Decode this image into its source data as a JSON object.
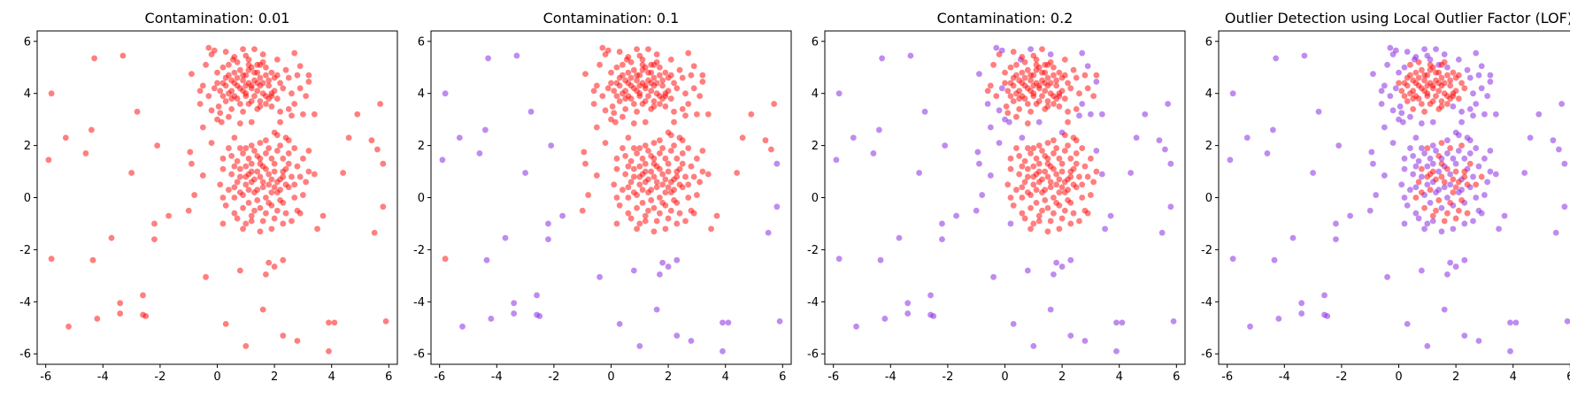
{
  "colors": {
    "inlier": "#ff0000",
    "outlier": "#8b2be2"
  },
  "chart_data": [
    {
      "type": "scatter",
      "title": "Contamination: 0.01",
      "xlim": [
        -6.3,
        6.3
      ],
      "ylim": [
        -6.4,
        6.4
      ],
      "xticks": [
        -6,
        -4,
        -2,
        0,
        2,
        4,
        6
      ],
      "yticks": [
        -6,
        -4,
        -2,
        0,
        2,
        4,
        6
      ],
      "grid": false,
      "outlier_count": 0
    },
    {
      "type": "scatter",
      "title": "Contamination: 0.1",
      "xlim": [
        -6.3,
        6.3
      ],
      "ylim": [
        -6.4,
        6.4
      ],
      "xticks": [
        -6,
        -4,
        -2,
        0,
        2,
        4,
        6
      ],
      "yticks": [
        -6,
        -4,
        -2,
        0,
        2,
        4,
        6
      ],
      "grid": false,
      "outlier_count": 40
    },
    {
      "type": "scatter",
      "title": "Contamination: 0.2",
      "xlim": [
        -6.3,
        6.3
      ],
      "ylim": [
        -6.4,
        6.4
      ],
      "xticks": [
        -6,
        -4,
        -2,
        0,
        2,
        4,
        6
      ],
      "yticks": [
        -6,
        -4,
        -2,
        0,
        2,
        4,
        6
      ],
      "grid": false,
      "outlier_count": 80
    },
    {
      "type": "scatter",
      "title": "Outlier Detection using Local Outlier Factor (LOF)",
      "xlim": [
        -6.3,
        6.3
      ],
      "ylim": [
        -6.4,
        6.4
      ],
      "xticks": [
        -6,
        -4,
        -2,
        0,
        2,
        4,
        6
      ],
      "yticks": [
        -6,
        -4,
        -2,
        0,
        2,
        4,
        6
      ],
      "grid": false,
      "outlier_count": 200
    }
  ],
  "points": [
    [
      -5.8,
      4.0
    ],
    [
      -4.3,
      5.35
    ],
    [
      -3.3,
      5.45
    ],
    [
      -5.9,
      1.45
    ],
    [
      -5.3,
      2.3
    ],
    [
      -4.4,
      2.6
    ],
    [
      -4.6,
      1.7
    ],
    [
      -2.8,
      3.3
    ],
    [
      -3.0,
      0.95
    ],
    [
      -2.1,
      2.0
    ],
    [
      -5.8,
      -2.35
    ],
    [
      -4.35,
      -2.4
    ],
    [
      -3.7,
      -1.55
    ],
    [
      -2.2,
      -1.0
    ],
    [
      -2.2,
      -1.6
    ],
    [
      -1.7,
      -0.7
    ],
    [
      -5.2,
      -4.95
    ],
    [
      -4.2,
      -4.65
    ],
    [
      -3.4,
      -4.05
    ],
    [
      -3.4,
      -4.45
    ],
    [
      -2.6,
      -3.75
    ],
    [
      -2.6,
      -4.5
    ],
    [
      -2.5,
      -4.55
    ],
    [
      -0.4,
      -3.05
    ],
    [
      0.3,
      -4.85
    ],
    [
      0.8,
      -2.8
    ],
    [
      1.0,
      -5.7
    ],
    [
      1.6,
      -4.3
    ],
    [
      1.8,
      -2.5
    ],
    [
      1.7,
      -2.95
    ],
    [
      2.0,
      -2.65
    ],
    [
      2.3,
      -2.4
    ],
    [
      2.3,
      -5.3
    ],
    [
      2.8,
      -5.5
    ],
    [
      3.9,
      -4.8
    ],
    [
      4.1,
      -4.8
    ],
    [
      3.9,
      -5.9
    ],
    [
      5.9,
      -4.75
    ],
    [
      5.8,
      -0.35
    ],
    [
      5.5,
      -1.35
    ],
    [
      5.8,
      1.3
    ],
    [
      5.6,
      1.85
    ],
    [
      5.4,
      2.2
    ],
    [
      4.6,
      2.3
    ],
    [
      4.4,
      0.95
    ],
    [
      5.7,
      3.6
    ],
    [
      3.2,
      4.45
    ],
    [
      2.7,
      5.55
    ],
    [
      -0.95,
      1.75
    ],
    [
      -0.9,
      1.3
    ],
    [
      -0.5,
      0.85
    ],
    [
      -0.3,
      5.75
    ],
    [
      -0.1,
      5.65
    ],
    [
      -0.9,
      4.75
    ],
    [
      -0.6,
      3.6
    ],
    [
      3.5,
      -1.2
    ],
    [
      3.7,
      -0.7
    ],
    [
      0.2,
      -1.0
    ],
    [
      3.4,
      0.9
    ],
    [
      -0.2,
      2.1
    ],
    [
      3.4,
      3.2
    ],
    [
      3.2,
      1.8
    ],
    [
      -0.5,
      2.7
    ],
    [
      0.55,
      5.3
    ],
    [
      1.6,
      5.5
    ],
    [
      2.0,
      2.5
    ],
    [
      -1.0,
      -0.5
    ],
    [
      4.9,
      3.2
    ],
    [
      -0.8,
      0.1
    ],
    [
      0.15,
      2.9
    ],
    [
      2.9,
      5.05
    ],
    [
      2.6,
      3.15
    ],
    [
      2.7,
      3.6
    ],
    [
      3.0,
      3.2
    ],
    [
      -0.2,
      3.35
    ],
    [
      0.0,
      3.0
    ],
    [
      1.2,
      2.9
    ],
    [
      0.6,
      2.3
    ],
    [
      -0.1,
      4.2
    ],
    [
      0.9,
      5.7
    ],
    [
      1.4,
      5.1
    ],
    [
      2.1,
      5.3
    ],
    [
      -0.2,
      5.5
    ],
    [
      3.1,
      3.9
    ],
    [
      2.6,
      4.0
    ],
    [
      2.5,
      4.6
    ],
    [
      2.4,
      4.9
    ],
    [
      1.1,
      5.3
    ],
    [
      0.3,
      5.6
    ],
    [
      -0.5,
      4.3
    ],
    [
      0.0,
      4.8
    ],
    [
      -0.3,
      3.9
    ],
    [
      0.05,
      3.5
    ],
    [
      0.4,
      3.1
    ],
    [
      0.8,
      2.85
    ],
    [
      2.2,
      3.3
    ],
    [
      2.2,
      2.9
    ],
    [
      1.9,
      3.5
    ],
    [
      0.2,
      5.0
    ],
    [
      1.7,
      5.0
    ],
    [
      2.9,
      4.2
    ],
    [
      -0.4,
      5.1
    ],
    [
      0.6,
      5.4
    ],
    [
      1.3,
      5.7
    ],
    [
      2.8,
      4.7
    ],
    [
      2.5,
      3.4
    ],
    [
      0.1,
      3.25
    ],
    [
      3.2,
      4.7
    ],
    [
      -0.6,
      4.1
    ],
    [
      1.0,
      5.45
    ],
    [
      0.2,
      4.4
    ],
    [
      0.5,
      4.1
    ],
    [
      0.9,
      4.5
    ],
    [
      1.2,
      4.2
    ],
    [
      1.6,
      4.0
    ],
    [
      0.7,
      3.8
    ],
    [
      1.1,
      3.6
    ],
    [
      1.5,
      4.6
    ],
    [
      1.8,
      4.3
    ],
    [
      0.4,
      4.7
    ],
    [
      0.8,
      4.9
    ],
    [
      1.3,
      4.8
    ],
    [
      2.0,
      4.1
    ],
    [
      0.3,
      3.7
    ],
    [
      1.4,
      3.4
    ],
    [
      1.9,
      3.9
    ],
    [
      0.6,
      4.4
    ],
    [
      1.0,
      4.0
    ],
    [
      1.7,
      4.7
    ],
    [
      0.5,
      3.4
    ],
    [
      2.2,
      4.4
    ],
    [
      0.1,
      4.1
    ],
    [
      1.2,
      5.0
    ],
    [
      1.5,
      3.7
    ],
    [
      0.9,
      3.3
    ],
    [
      2.1,
      3.8
    ],
    [
      0.4,
      5.1
    ],
    [
      1.6,
      5.2
    ],
    [
      0.7,
      4.6
    ],
    [
      1.1,
      4.4
    ],
    [
      1.4,
      4.1
    ],
    [
      0.8,
      4.2
    ],
    [
      1.3,
      3.9
    ],
    [
      0.6,
      3.9
    ],
    [
      1.8,
      4.5
    ],
    [
      1.0,
      4.7
    ],
    [
      0.3,
      4.3
    ],
    [
      2.0,
      4.6
    ],
    [
      1.5,
      4.3
    ],
    [
      0.9,
      4.1
    ],
    [
      0.5,
      3.8
    ],
    [
      1.2,
      3.7
    ],
    [
      1.7,
      3.6
    ],
    [
      0.2,
      3.9
    ],
    [
      1.9,
      4.8
    ],
    [
      1.1,
      5.1
    ],
    [
      0.7,
      5.2
    ],
    [
      1.5,
      5.1
    ],
    [
      2.3,
      4.2
    ],
    [
      0.0,
      4.4
    ],
    [
      1.3,
      4.5
    ],
    [
      0.8,
      3.6
    ],
    [
      1.0,
      3.9
    ],
    [
      1.6,
      4.4
    ],
    [
      0.4,
      4.0
    ],
    [
      2.1,
      4.7
    ],
    [
      1.4,
      4.8
    ],
    [
      0.6,
      4.8
    ],
    [
      1.9,
      4.0
    ],
    [
      1.2,
      4.3
    ],
    [
      0.3,
      4.6
    ],
    [
      1.7,
      3.9
    ],
    [
      0.9,
      4.7
    ],
    [
      1.5,
      3.5
    ],
    [
      1.1,
      4.9
    ],
    [
      0.7,
      4.3
    ],
    [
      1.8,
      3.8
    ],
    [
      0.5,
      4.5
    ],
    [
      1.4,
      4.4
    ],
    [
      1.0,
      4.3
    ],
    [
      0.2,
      1.1
    ],
    [
      0.5,
      1.6
    ],
    [
      0.4,
      0.3
    ],
    [
      0.3,
      -0.3
    ],
    [
      0.6,
      -0.6
    ],
    [
      0.9,
      -1.2
    ],
    [
      1.2,
      -0.9
    ],
    [
      1.5,
      -1.3
    ],
    [
      1.9,
      -1.2
    ],
    [
      2.3,
      -1.0
    ],
    [
      2.6,
      -0.9
    ],
    [
      2.8,
      -0.5
    ],
    [
      3.0,
      0.1
    ],
    [
      3.1,
      0.6
    ],
    [
      3.0,
      1.5
    ],
    [
      2.7,
      1.9
    ],
    [
      2.5,
      2.2
    ],
    [
      2.1,
      2.4
    ],
    [
      1.7,
      2.2
    ],
    [
      1.2,
      2.0
    ],
    [
      0.8,
      1.9
    ],
    [
      0.4,
      1.9
    ],
    [
      0.1,
      0.5
    ],
    [
      0.2,
      0.0
    ],
    [
      3.2,
      1.0
    ],
    [
      0.7,
      -0.8
    ],
    [
      2.9,
      -0.6
    ],
    [
      1.0,
      -1.0
    ],
    [
      2.4,
      2.3
    ],
    [
      0.2,
      1.5
    ],
    [
      0.6,
      0.4
    ],
    [
      0.8,
      0.8
    ],
    [
      1.0,
      1.2
    ],
    [
      1.2,
      0.6
    ],
    [
      1.4,
      1.0
    ],
    [
      1.6,
      0.4
    ],
    [
      1.8,
      0.9
    ],
    [
      2.0,
      1.3
    ],
    [
      2.2,
      0.7
    ],
    [
      2.4,
      1.1
    ],
    [
      0.9,
      0.1
    ],
    [
      1.1,
      -0.2
    ],
    [
      1.3,
      0.2
    ],
    [
      1.5,
      -0.4
    ],
    [
      1.7,
      0.0
    ],
    [
      1.9,
      -0.3
    ],
    [
      2.1,
      0.2
    ],
    [
      2.3,
      -0.2
    ],
    [
      2.5,
      0.4
    ],
    [
      2.7,
      0.0
    ],
    [
      0.7,
      1.4
    ],
    [
      0.9,
      1.7
    ],
    [
      1.1,
      1.5
    ],
    [
      1.3,
      1.8
    ],
    [
      1.5,
      1.5
    ],
    [
      1.7,
      1.7
    ],
    [
      1.9,
      1.5
    ],
    [
      2.1,
      1.8
    ],
    [
      2.3,
      1.5
    ],
    [
      2.5,
      1.7
    ],
    [
      0.5,
      0.9
    ],
    [
      0.6,
      1.2
    ],
    [
      2.6,
      0.8
    ],
    [
      2.8,
      1.2
    ],
    [
      1.0,
      0.5
    ],
    [
      1.4,
      0.3
    ],
    [
      1.8,
      0.5
    ],
    [
      2.2,
      0.3
    ],
    [
      1.2,
      1.3
    ],
    [
      1.6,
      1.2
    ],
    [
      2.0,
      1.0
    ],
    [
      2.4,
      0.5
    ],
    [
      0.8,
      0.2
    ],
    [
      1.1,
      0.9
    ],
    [
      1.5,
      0.8
    ],
    [
      1.9,
      0.7
    ],
    [
      2.3,
      1.0
    ],
    [
      1.3,
      -0.5
    ],
    [
      1.7,
      -0.6
    ],
    [
      2.1,
      -0.5
    ],
    [
      0.9,
      -0.4
    ],
    [
      1.2,
      -0.7
    ],
    [
      1.6,
      -0.9
    ],
    [
      2.0,
      -0.8
    ],
    [
      2.4,
      -0.6
    ],
    [
      0.6,
      0.0
    ],
    [
      2.7,
      0.5
    ],
    [
      1.4,
      1.6
    ],
    [
      1.8,
      1.9
    ],
    [
      1.0,
      1.9
    ],
    [
      2.2,
      2.0
    ],
    [
      1.5,
      2.1
    ],
    [
      0.7,
      0.6
    ],
    [
      2.9,
      0.8
    ],
    [
      1.3,
      0.7
    ],
    [
      1.7,
      1.1
    ],
    [
      2.1,
      0.6
    ],
    [
      1.1,
      0.3
    ],
    [
      1.9,
      0.2
    ],
    [
      2.5,
      1.3
    ],
    [
      0.8,
      1.1
    ],
    [
      1.6,
      0.6
    ],
    [
      2.3,
      0.8
    ],
    [
      1.4,
      -0.1
    ],
    [
      1.8,
      -0.2
    ],
    [
      2.2,
      -0.1
    ],
    [
      1.0,
      0.8
    ],
    [
      2.0,
      0.4
    ],
    [
      1.2,
      1.0
    ],
    [
      1.5,
      1.3
    ]
  ],
  "outlier_order": [
    0,
    1,
    2,
    3,
    4,
    5,
    6,
    7,
    8,
    9,
    11,
    12,
    13,
    14,
    15,
    16,
    17,
    18,
    19,
    20,
    21,
    22,
    23,
    24,
    25,
    26,
    27,
    28,
    29,
    30,
    31,
    32,
    33,
    34,
    35,
    36,
    37,
    38,
    39,
    40,
    41,
    42,
    43,
    44,
    45,
    46,
    47,
    48,
    49,
    50,
    51,
    52,
    53,
    54,
    55,
    56,
    57,
    58,
    59,
    60,
    61,
    62,
    63,
    64,
    65,
    66,
    67,
    68,
    69,
    70,
    71,
    72,
    73,
    74,
    75,
    76,
    77,
    78,
    79,
    10,
    80,
    81,
    82,
    83,
    84,
    85,
    86,
    87,
    88,
    89,
    90,
    91,
    92,
    93,
    94,
    95,
    96,
    97,
    98,
    99,
    100,
    101,
    102,
    103,
    104,
    105,
    106,
    107,
    108,
    109,
    180,
    181,
    182,
    183,
    184,
    185,
    186,
    187,
    188,
    189,
    190,
    191,
    192,
    193,
    194,
    195,
    196,
    197,
    198,
    199,
    200,
    201,
    202,
    203,
    204,
    205,
    206,
    207,
    208,
    209,
    210,
    211,
    212,
    213,
    214,
    215,
    216,
    217,
    218,
    219,
    220,
    221,
    222,
    223,
    224,
    225,
    226,
    227,
    228,
    229,
    230,
    231,
    232,
    233,
    234,
    235,
    236,
    237,
    238,
    239,
    240,
    241,
    242,
    243,
    244,
    245,
    246,
    247,
    248,
    249
  ]
}
